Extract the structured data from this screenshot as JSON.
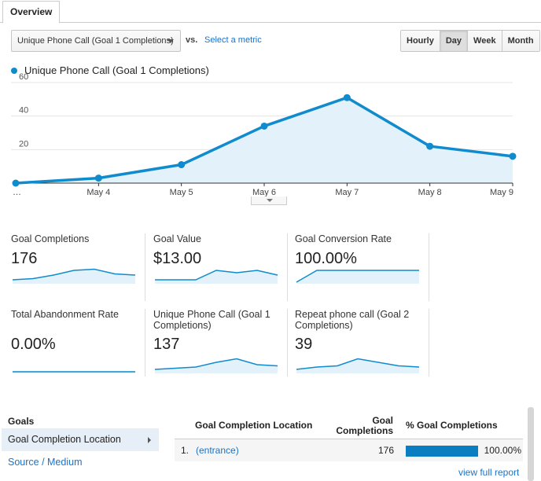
{
  "tabs": [
    {
      "label": "Overview"
    }
  ],
  "controls": {
    "metric_select": "Unique Phone Call (Goal 1 Completions)",
    "vs_label": "vs.",
    "select_metric_link": "Select a metric",
    "granularity": [
      {
        "label": "Hourly",
        "active": false
      },
      {
        "label": "Day",
        "active": true
      },
      {
        "label": "Week",
        "active": false
      },
      {
        "label": "Month",
        "active": false
      }
    ]
  },
  "chart_data": {
    "type": "area",
    "title": "",
    "xlabel": "",
    "ylabel": "",
    "categories": [
      "…",
      "May 4",
      "May 5",
      "May 6",
      "May 7",
      "May 8",
      "May 9"
    ],
    "series": [
      {
        "name": "Unique Phone Call (Goal 1 Completions)",
        "values": [
          0,
          3,
          11,
          34,
          51,
          22,
          16
        ]
      }
    ],
    "ylim": [
      0,
      60
    ],
    "yticks": [
      20,
      40,
      60
    ],
    "grid": true,
    "legend": "top-left",
    "color": "#0f8bce",
    "fill": "#e3f1fa"
  },
  "scorecards": [
    {
      "label": "Goal Completions",
      "value": "176",
      "spark": [
        2,
        3,
        6,
        10,
        11,
        7,
        6
      ]
    },
    {
      "label": "Goal Value",
      "value": "$13.00",
      "spark": [
        2,
        2,
        2,
        10,
        8,
        10,
        6
      ]
    },
    {
      "label": "Goal Conversion Rate",
      "value": "100.00%",
      "spark": [
        0,
        10,
        10,
        10,
        10,
        10,
        10
      ]
    },
    {
      "label": "Total Abandonment Rate",
      "value": "0.00%",
      "spark": [
        0,
        0,
        0,
        0,
        0,
        0,
        0
      ]
    },
    {
      "label": "Unique Phone Call (Goal 1 Completions)",
      "value": "137",
      "spark": [
        2,
        3,
        4,
        8,
        11,
        6,
        5
      ]
    },
    {
      "label": "Repeat phone call (Goal 2 Completions)",
      "value": "39",
      "spark": [
        2,
        4,
        5,
        11,
        8,
        5,
        4
      ]
    }
  ],
  "goals_panel": {
    "title": "Goals",
    "active_item": "Goal Completion Location",
    "link_item": "Source / Medium"
  },
  "table": {
    "headers": {
      "location": "Goal Completion Location",
      "completions": "Goal Completions",
      "percent": "% Goal Completions"
    },
    "rows": [
      {
        "index": "1.",
        "location": "(entrance)",
        "completions": "176",
        "percent": "100.00%",
        "percent_value": 100
      }
    ],
    "view_full_report": "view full report"
  }
}
